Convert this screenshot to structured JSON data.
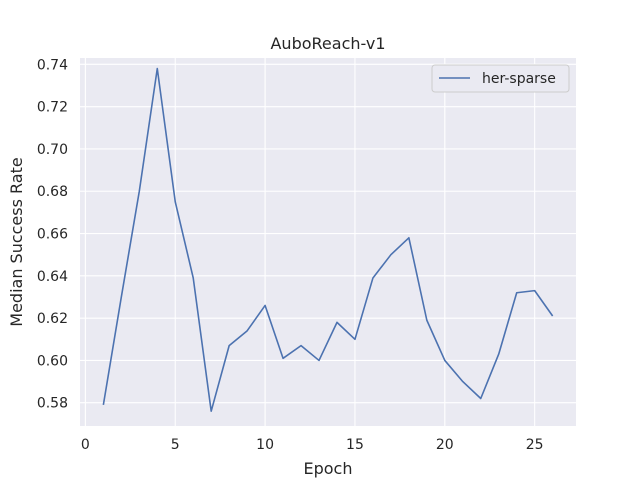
{
  "chart_data": {
    "type": "line",
    "title": "AuboReach-v1",
    "xlabel": "Epoch",
    "ylabel": "Median Success Rate",
    "xlim": [
      -0.3,
      27.3
    ],
    "ylim": [
      0.569,
      0.743
    ],
    "xticks": [
      0,
      5,
      10,
      15,
      20,
      25
    ],
    "yticks": [
      0.58,
      0.6,
      0.62,
      0.64,
      0.66,
      0.68,
      0.7,
      0.72,
      0.74
    ],
    "grid": true,
    "legend_position": "upper right",
    "series": [
      {
        "name": "her-sparse",
        "color": "#4c72b0",
        "x": [
          1,
          2,
          3,
          4,
          5,
          6,
          7,
          8,
          9,
          10,
          11,
          12,
          13,
          14,
          15,
          16,
          17,
          18,
          19,
          20,
          21,
          22,
          23,
          24,
          25,
          26
        ],
        "y": [
          0.579,
          0.63,
          0.68,
          0.738,
          0.675,
          0.639,
          0.576,
          0.607,
          0.614,
          0.626,
          0.601,
          0.607,
          0.6,
          0.618,
          0.61,
          0.639,
          0.65,
          0.658,
          0.619,
          0.6,
          0.59,
          0.582,
          0.603,
          0.632,
          0.633,
          0.621
        ]
      }
    ]
  }
}
